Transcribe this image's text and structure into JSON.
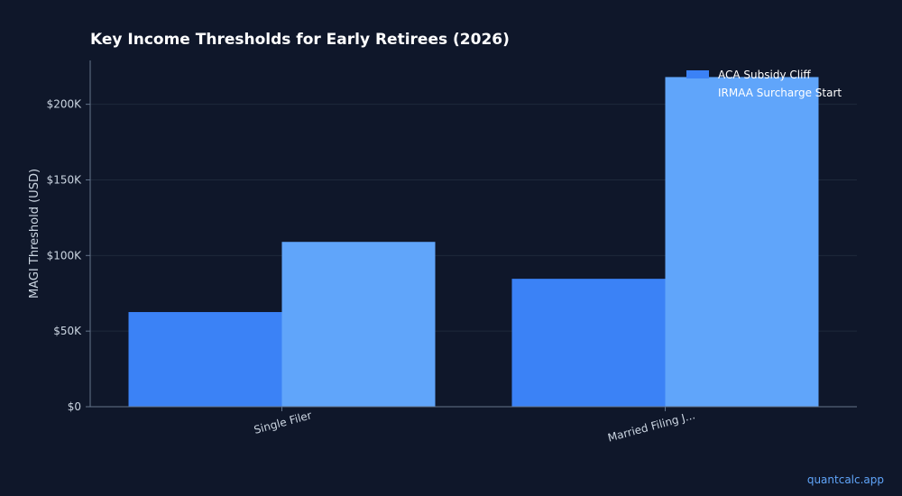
{
  "chart_data": {
    "type": "bar",
    "title": "Key Income Thresholds for Early Retirees (2026)",
    "xlabel": "",
    "ylabel": "MAGI Threshold (USD)",
    "categories": [
      "Single Filer",
      "Married Filing J..."
    ],
    "series": [
      {
        "name": "ACA Subsidy Cliff",
        "values": [
          62600,
          84600
        ],
        "color": "#3b82f6"
      },
      {
        "name": "IRMAA Surcharge Start",
        "values": [
          109000,
          218000
        ],
        "color": "#60a5fa"
      }
    ],
    "ylim": [
      0,
      229000
    ],
    "yticks": [
      0,
      50000,
      100000,
      150000,
      200000
    ],
    "ytick_labels": [
      "$0",
      "$50K",
      "$100K",
      "$150K",
      "$200K"
    ],
    "grid": true,
    "legend_position": "top-right"
  },
  "footer": {
    "watermark": "quantcalc.app"
  },
  "colors": {
    "background": "#0f172a",
    "grid": "#1e293b",
    "axis": "#64748b",
    "text": "#cbd5e1"
  }
}
